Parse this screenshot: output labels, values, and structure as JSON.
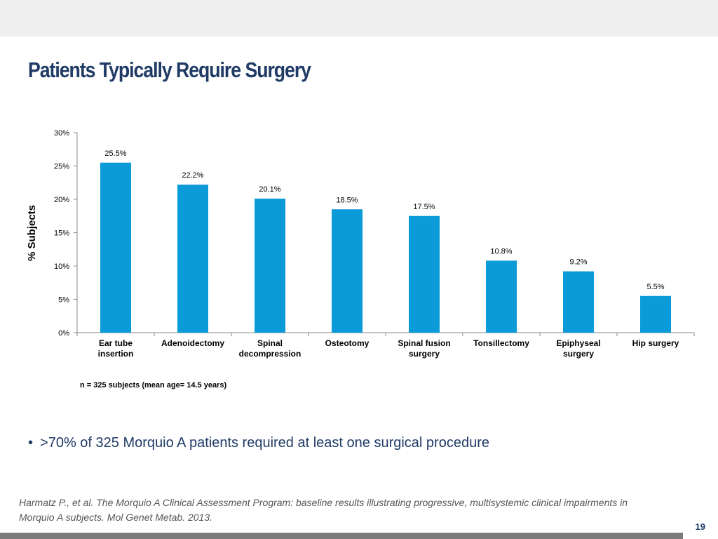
{
  "slide": {
    "title": "Patients Typically Require Surgery",
    "bullet": ">70% of 325 Morquio A patients required at least one surgical procedure",
    "bullet_symbol": "•",
    "citation": "Harmatz P., et al. The Morquio A Clinical Assessment Program: baseline results illustrating progressive, multisystemic clinical impairments in Morquio A subjects. Mol Genet Metab. 2013.",
    "page_number": "19"
  },
  "colors": {
    "title": "#1f3b66",
    "bullet_text": "#1f3b66",
    "bar": "#0a9bd8",
    "axis": "#888888",
    "top_band": "#efefef",
    "bottom_bar": "#7b7b7b"
  },
  "chart_data": {
    "type": "bar",
    "title": "",
    "xlabel": "",
    "ylabel": "% Subjects",
    "categories": [
      [
        "Ear tube",
        "insertion"
      ],
      [
        "Adenoidectomy"
      ],
      [
        "Spinal",
        "decompression"
      ],
      [
        "Osteotomy"
      ],
      [
        "Spinal fusion",
        "surgery"
      ],
      [
        "Tonsillectomy"
      ],
      [
        "Epiphyseal",
        "surgery"
      ],
      [
        "Hip surgery"
      ]
    ],
    "values": [
      25.5,
      22.2,
      20.1,
      18.5,
      17.5,
      10.8,
      9.2,
      5.5
    ],
    "value_labels": [
      "25.5%",
      "22.2%",
      "20.1%",
      "18.5%",
      "17.5%",
      "10.8%",
      "9.2%",
      "5.5%"
    ],
    "ylim": [
      0,
      30
    ],
    "y_ticks": [
      0,
      5,
      10,
      15,
      20,
      25,
      30
    ],
    "y_tick_labels": [
      "0%",
      "5%",
      "10%",
      "15%",
      "20%",
      "25%",
      "30%"
    ],
    "grid": false,
    "legend": "none",
    "note": "n = 325 subjects (mean age= 14.5 years)"
  }
}
